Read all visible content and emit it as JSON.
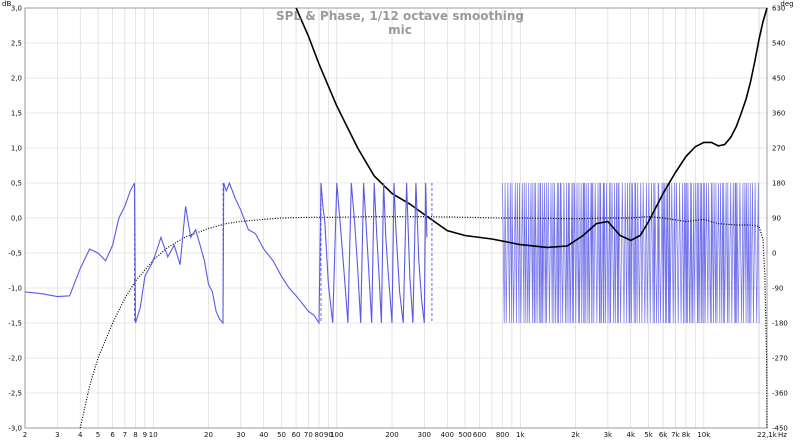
{
  "chart_data": {
    "type": "line",
    "title": "SPL & Phase, 1/12 octave smoothing",
    "subtitle": "mic",
    "x_scale": "log",
    "xlim": [
      2,
      22100
    ],
    "ylim_left": [
      -3.0,
      3.0
    ],
    "ylim_right": [
      -450,
      630
    ],
    "left_unit": "dB",
    "right_unit": "deg",
    "x_unit": "Hz",
    "grid": true,
    "x_ticks": [
      {
        "v": 2,
        "label": "2"
      },
      {
        "v": 3,
        "label": "3"
      },
      {
        "v": 4,
        "label": "4"
      },
      {
        "v": 5,
        "label": "5"
      },
      {
        "v": 6,
        "label": "6"
      },
      {
        "v": 7,
        "label": "7"
      },
      {
        "v": 8,
        "label": "8"
      },
      {
        "v": 9,
        "label": "9"
      },
      {
        "v": 10,
        "label": "10"
      },
      {
        "v": 20,
        "label": "20"
      },
      {
        "v": 30,
        "label": "30"
      },
      {
        "v": 40,
        "label": "40"
      },
      {
        "v": 50,
        "label": "50"
      },
      {
        "v": 60,
        "label": "60"
      },
      {
        "v": 70,
        "label": "70"
      },
      {
        "v": 80,
        "label": "80"
      },
      {
        "v": 90,
        "label": "90"
      },
      {
        "v": 100,
        "label": "100"
      },
      {
        "v": 200,
        "label": "200"
      },
      {
        "v": 300,
        "label": "300"
      },
      {
        "v": 400,
        "label": "400"
      },
      {
        "v": 500,
        "label": "500"
      },
      {
        "v": 600,
        "label": "600"
      },
      {
        "v": 800,
        "label": "800"
      },
      {
        "v": 1000,
        "label": "1k"
      },
      {
        "v": 2000,
        "label": "2k"
      },
      {
        "v": 3000,
        "label": "3k"
      },
      {
        "v": 4000,
        "label": "4k"
      },
      {
        "v": 5000,
        "label": "5k"
      },
      {
        "v": 6000,
        "label": "6k"
      },
      {
        "v": 7000,
        "label": "7k"
      },
      {
        "v": 8000,
        "label": "8k"
      },
      {
        "v": 10000,
        "label": "10k"
      },
      {
        "v": 22100,
        "label": "22,1k"
      }
    ],
    "left_ticks": [
      "3,0",
      "2,5",
      "2,0",
      "1,5",
      "1,0",
      "0,5",
      "0,0",
      "-0,5",
      "-1,0",
      "-1,5",
      "-2,0",
      "-2,5",
      "-3,0"
    ],
    "right_ticks": [
      "630",
      "540",
      "450",
      "360",
      "270",
      "180",
      "90",
      "0",
      "-90",
      "-180",
      "-270",
      "-360",
      "-450"
    ],
    "series": [
      {
        "style": "solid-black",
        "axis": "left",
        "x": [
          60,
          70,
          80,
          100,
          130,
          160,
          200,
          250,
          300,
          400,
          500,
          700,
          1000,
          1400,
          1800,
          2200,
          2600,
          3000,
          3500,
          4000,
          4500,
          5000,
          6000,
          7000,
          8000,
          9000,
          10000,
          11000,
          12000,
          13000,
          14000,
          15000,
          16000,
          17000,
          18000,
          19000,
          20000,
          21000,
          22100
        ],
        "y": [
          3.0,
          2.6,
          2.2,
          1.6,
          1.0,
          0.6,
          0.35,
          0.2,
          0.05,
          -0.18,
          -0.25,
          -0.3,
          -0.38,
          -0.42,
          -0.4,
          -0.25,
          -0.08,
          -0.05,
          -0.25,
          -0.32,
          -0.25,
          -0.05,
          0.35,
          0.65,
          0.88,
          1.02,
          1.08,
          1.08,
          1.03,
          1.05,
          1.15,
          1.3,
          1.5,
          1.7,
          1.95,
          2.25,
          2.55,
          2.8,
          3.0
        ]
      },
      {
        "style": "dotted-black",
        "axis": "left",
        "x": [
          4,
          4.5,
          5,
          6,
          7,
          8,
          10,
          12,
          15,
          20,
          25,
          30,
          40,
          50,
          70,
          100,
          150,
          200,
          300,
          500,
          800,
          1000,
          2000,
          3000,
          4000,
          5000,
          6000,
          8000,
          10000,
          12000,
          15000,
          18000,
          20000,
          21000,
          21500,
          22000,
          22100
        ],
        "y": [
          -3.0,
          -2.4,
          -2.0,
          -1.5,
          -1.15,
          -0.9,
          -0.6,
          -0.42,
          -0.27,
          -0.15,
          -0.08,
          -0.05,
          -0.02,
          0.0,
          0.01,
          0.01,
          0.02,
          0.02,
          0.02,
          0.01,
          0.0,
          0.0,
          -0.01,
          0.0,
          0.0,
          0.02,
          0.0,
          -0.05,
          -0.02,
          -0.08,
          -0.1,
          -0.1,
          -0.12,
          -0.3,
          -0.8,
          -2.0,
          -3.0
        ]
      },
      {
        "style": "solid-blue",
        "axis": "right",
        "x": [
          2,
          2.5,
          3,
          3.5,
          4,
          4.5,
          5,
          5.5,
          6,
          6.5,
          7,
          7.5,
          7.9,
          8,
          8.5,
          9,
          10,
          11,
          12,
          13,
          14,
          15,
          16,
          17,
          18,
          19,
          20,
          21,
          22,
          23,
          24,
          24.2,
          25,
          26,
          28,
          30,
          33,
          36,
          40,
          45,
          50,
          55,
          60,
          65,
          70,
          75,
          80,
          82,
          84,
          86,
          90,
          95,
          100,
          105,
          110,
          115,
          120,
          125,
          130,
          135,
          140,
          145,
          150,
          155,
          160,
          165,
          170,
          175,
          180,
          185,
          190,
          200,
          205,
          210,
          215,
          220,
          230,
          240,
          245,
          250,
          260,
          270,
          275,
          280,
          290,
          300,
          305,
          310
        ],
        "y": [
          -100,
          -105,
          -112,
          -110,
          -40,
          10,
          0,
          -20,
          20,
          90,
          120,
          160,
          180,
          -180,
          -140,
          -60,
          -20,
          40,
          -10,
          20,
          -30,
          120,
          40,
          60,
          20,
          -20,
          -80,
          -100,
          -150,
          -170,
          -180,
          180,
          160,
          180,
          140,
          110,
          60,
          50,
          10,
          -20,
          -60,
          -90,
          -110,
          -130,
          -150,
          -160,
          -180,
          180,
          120,
          80,
          -80,
          -180,
          180,
          60,
          -60,
          -180,
          180,
          80,
          -40,
          -180,
          180,
          60,
          -60,
          -180,
          180,
          50,
          -60,
          -180,
          180,
          40,
          -40,
          -180,
          180,
          60,
          -20,
          -100,
          -180,
          180,
          60,
          -60,
          -180,
          180,
          80,
          -20,
          -120,
          -180,
          180,
          40
        ]
      },
      {
        "style": "dashed-blue-wraps",
        "axis": "right",
        "x": [
          7.9,
          24,
          82,
          330
        ],
        "y": [
          180,
          180,
          180,
          180
        ]
      }
    ],
    "wrap_band": {
      "x": [
        800,
        20000
      ],
      "ylim_right": [
        -180,
        180
      ]
    }
  }
}
